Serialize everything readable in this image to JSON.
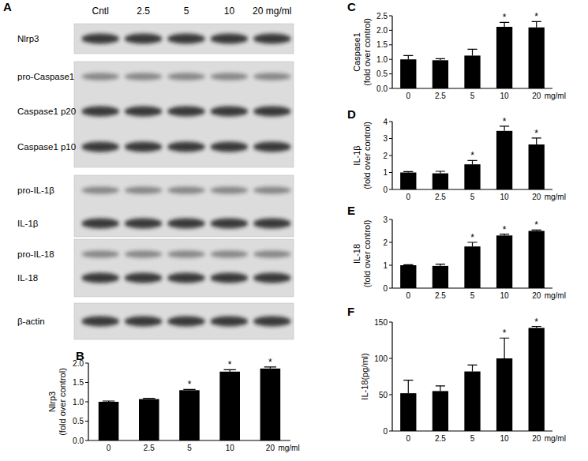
{
  "blot": {
    "title": "A",
    "lanes": [
      "Cntl",
      "2.5",
      "5",
      "10",
      "20 mg/ml"
    ],
    "panels": [
      [
        "Nlrp3"
      ],
      [
        "pro-Caspase1",
        "Caspase1 p20",
        "Caspase1 p10"
      ],
      [
        "pro-IL-1β",
        "IL-1β"
      ],
      [
        "pro-IL-18",
        "IL-18"
      ],
      [
        "β-actin"
      ]
    ]
  },
  "chart_data": [
    {
      "type": "bar",
      "title": "B",
      "y_label": "Nlrp3\n(fold over control)",
      "x_label": "mg/ml",
      "categories": [
        "0",
        "2.5",
        "5",
        "10",
        "20"
      ],
      "values": [
        1.0,
        1.07,
        1.3,
        1.78,
        1.86
      ],
      "errors": [
        0.02,
        0.02,
        0.02,
        0.05,
        0.04
      ],
      "color": "#000000",
      "ylim": [
        0,
        2.0
      ],
      "yticks": [
        {
          "value": 0,
          "label": "0.0"
        },
        {
          "value": 0.5,
          "label": "0.5"
        },
        {
          "value": 1.0,
          "label": "1.0"
        },
        {
          "value": 1.5,
          "label": "1.5"
        },
        {
          "value": 2.0,
          "label": "2.0"
        }
      ],
      "annotations": [
        {
          "category": "5",
          "text": "*"
        },
        {
          "category": "10",
          "text": "*"
        },
        {
          "category": "20",
          "text": "*"
        }
      ]
    },
    {
      "type": "bar",
      "title": "C",
      "y_label": "Caspase1\n(fold over control)",
      "x_label": "mg/ml",
      "categories": [
        "0",
        "2.5",
        "5",
        "10",
        "20"
      ],
      "values": [
        1.0,
        0.97,
        1.13,
        2.12,
        2.1
      ],
      "errors": [
        0.13,
        0.05,
        0.22,
        0.15,
        0.2
      ],
      "color": "#000000",
      "ylim": [
        0,
        2.5
      ],
      "yticks": [
        {
          "value": 0,
          "label": "0.0"
        },
        {
          "value": 0.5,
          "label": "0.5"
        },
        {
          "value": 1.0,
          "label": "1.0"
        },
        {
          "value": 1.5,
          "label": "1.5"
        },
        {
          "value": 2.0,
          "label": "2.0"
        },
        {
          "value": 2.5,
          "label": "2.5"
        }
      ],
      "annotations": [
        {
          "category": "10",
          "text": "*"
        },
        {
          "category": "20",
          "text": "*"
        }
      ]
    },
    {
      "type": "bar",
      "title": "D",
      "y_label": "IL-1β\n(fold over control)",
      "x_label": "mg/ml",
      "categories": [
        "0",
        "2.5",
        "5",
        "10",
        "20"
      ],
      "values": [
        1.0,
        0.95,
        1.48,
        3.45,
        2.65
      ],
      "errors": [
        0.05,
        0.12,
        0.22,
        0.28,
        0.38
      ],
      "color": "#000000",
      "ylim": [
        0,
        4
      ],
      "yticks": [
        0,
        1,
        2,
        3,
        4
      ],
      "annotations": [
        {
          "category": "5",
          "text": "*"
        },
        {
          "category": "10",
          "text": "*"
        },
        {
          "category": "20",
          "text": "*"
        }
      ]
    },
    {
      "type": "bar",
      "title": "E",
      "y_label": "IL-18\n(fold over control)",
      "x_label": "mg/ml",
      "categories": [
        "0",
        "2.5",
        "5",
        "10",
        "20"
      ],
      "values": [
        1.0,
        0.97,
        1.82,
        2.3,
        2.5
      ],
      "errors": [
        0.02,
        0.08,
        0.18,
        0.06,
        0.04
      ],
      "color": "#000000",
      "ylim": [
        0,
        3
      ],
      "yticks": [
        0,
        1,
        2,
        3
      ],
      "annotations": [
        {
          "category": "5",
          "text": "*"
        },
        {
          "category": "10",
          "text": "*"
        },
        {
          "category": "20",
          "text": "*"
        }
      ]
    },
    {
      "type": "bar",
      "title": "F",
      "y_label": "IL-18(pg/ml)",
      "x_label": "mg/ml",
      "categories": [
        "0",
        "2.5",
        "5",
        "10",
        "20"
      ],
      "values": [
        52,
        55,
        82,
        100,
        142
      ],
      "errors": [
        18,
        7,
        9,
        28,
        2
      ],
      "color": "#000000",
      "ylim": [
        0,
        150
      ],
      "yticks": [
        0,
        50,
        100,
        150
      ],
      "annotations": [
        {
          "category": "10",
          "text": "*"
        },
        {
          "category": "20",
          "text": "*"
        }
      ]
    }
  ]
}
